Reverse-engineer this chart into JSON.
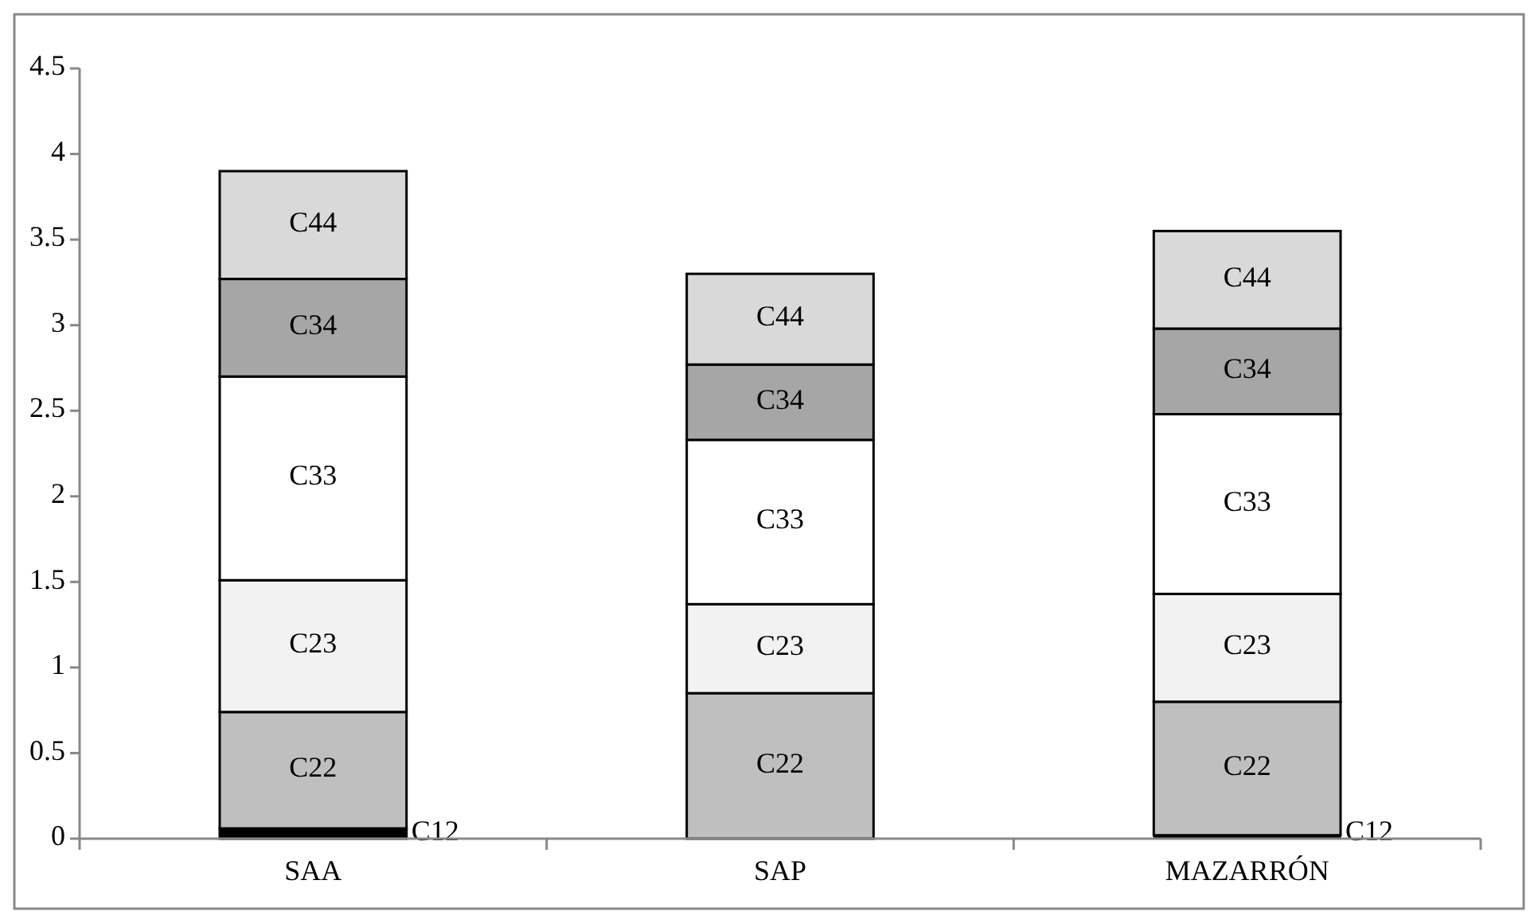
{
  "chart_data": {
    "type": "bar",
    "stacked": true,
    "categories": [
      "SAA",
      "SAP",
      "MAZARRÓN"
    ],
    "series": [
      {
        "name": "C12",
        "color": "#000000",
        "values": [
          0.06,
          null,
          0.02
        ]
      },
      {
        "name": "C22",
        "color": "#bfbfbf",
        "values": [
          0.68,
          0.85,
          0.78
        ]
      },
      {
        "name": "C23",
        "color": "#f2f2f2",
        "values": [
          0.77,
          0.52,
          0.63
        ]
      },
      {
        "name": "C33",
        "color": "#ffffff",
        "values": [
          1.19,
          0.96,
          1.05
        ]
      },
      {
        "name": "C34",
        "color": "#a6a6a6",
        "values": [
          0.57,
          0.44,
          0.5
        ]
      },
      {
        "name": "C44",
        "color": "#d9d9d9",
        "values": [
          0.63,
          0.53,
          0.57
        ]
      }
    ],
    "ylim": [
      0,
      4.5
    ],
    "yticks": [
      0,
      0.5,
      1,
      1.5,
      2,
      2.5,
      3,
      3.5,
      4,
      4.5
    ],
    "grid": false
  }
}
